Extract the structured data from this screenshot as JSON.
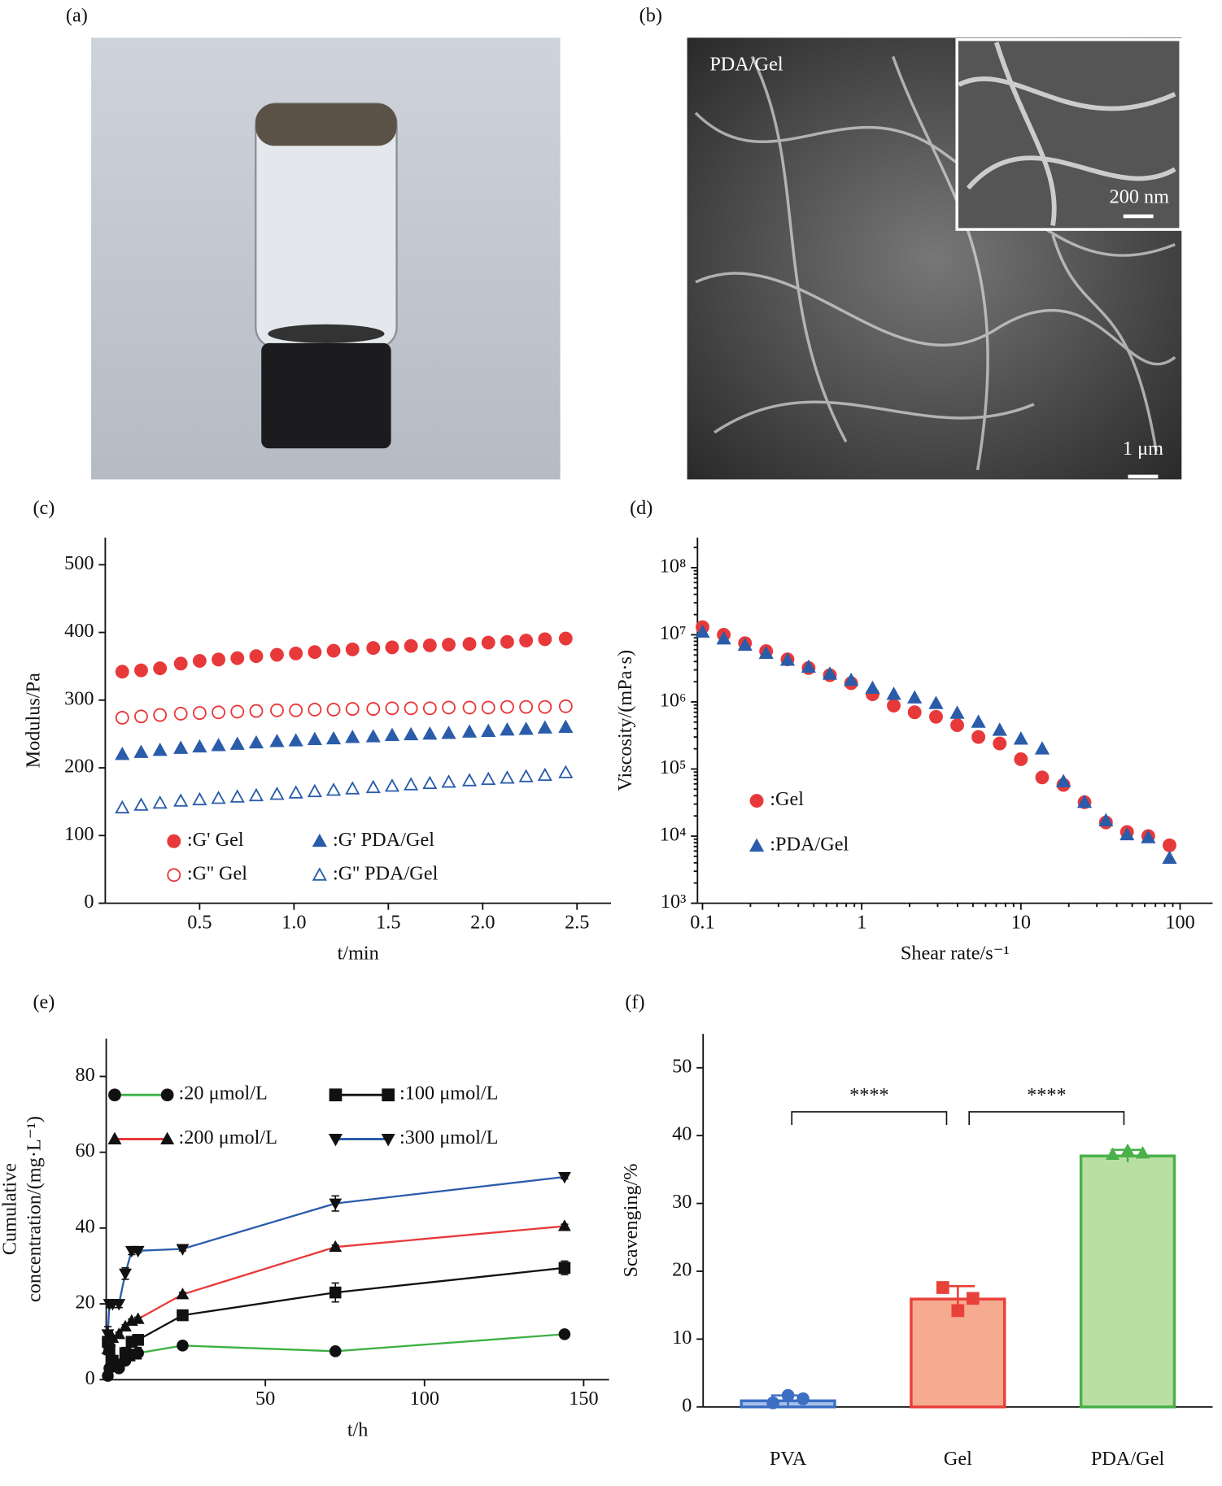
{
  "images": [
    {
      "label": "(a)"
    },
    {
      "label": "(b)",
      "texts": [
        "PDA/Gel",
        "200 nm",
        "1 μm"
      ]
    }
  ],
  "chart_data": [
    {
      "type": "scatter",
      "label": "(c)",
      "xlabel": "t/min",
      "ylabel": "Modulus/Pa",
      "xlim": [
        0,
        2.68
      ],
      "ylim": [
        0,
        540
      ],
      "xticks": [
        0.5,
        {
          "value": 1,
          "label": "1.0"
        },
        1.5,
        {
          "value": 2,
          "label": "2.0"
        },
        2.5
      ],
      "yticks": [
        0,
        100,
        200,
        300,
        400,
        500
      ],
      "x": [
        0.09,
        0.19,
        0.29,
        0.4,
        0.5,
        0.6,
        0.7,
        0.8,
        0.91,
        1.01,
        1.11,
        1.21,
        1.31,
        1.42,
        1.52,
        1.62,
        1.72,
        1.82,
        1.93,
        2.03,
        2.13,
        2.23,
        2.33,
        2.44
      ],
      "series": [
        {
          "name": ":G' Gel",
          "color": "#e8393a",
          "marker": "circle",
          "filled": true,
          "values": [
            342,
            344,
            347,
            354,
            358,
            360,
            362,
            365,
            367,
            369,
            371,
            373,
            375,
            377,
            378,
            380,
            381,
            382,
            383,
            385,
            386,
            388,
            390,
            391
          ]
        },
        {
          "name": ":G'' Gel",
          "color": "#e8393a",
          "marker": "circle",
          "filled": false,
          "values": [
            274,
            276,
            278,
            280,
            281,
            282,
            283,
            284,
            285,
            285,
            286,
            286,
            287,
            287,
            288,
            288,
            288,
            289,
            289,
            289,
            290,
            290,
            290,
            291
          ]
        },
        {
          "name": ":G' PDA/Gel",
          "color": "#2a5caa",
          "marker": "triangle",
          "filled": true,
          "values": [
            220,
            223,
            226,
            229,
            231,
            233,
            235,
            237,
            239,
            240,
            242,
            243,
            245,
            246,
            248,
            249,
            250,
            251,
            253,
            254,
            256,
            257,
            259,
            260
          ]
        },
        {
          "name": ":G'' PDA/Gel",
          "color": "#2a5caa",
          "marker": "triangle",
          "filled": false,
          "values": [
            141,
            145,
            148,
            151,
            153,
            155,
            157,
            159,
            161,
            163,
            165,
            167,
            169,
            171,
            173,
            175,
            177,
            179,
            181,
            183,
            185,
            187,
            189,
            193
          ]
        }
      ]
    },
    {
      "type": "scatter",
      "label": "(d)",
      "xlabel": "Shear rate/s⁻¹",
      "ylabel": "Viscosity/(mPa·s)",
      "xlog": true,
      "ylog": true,
      "xlim": [
        0.093,
        160
      ],
      "ylim": [
        1000,
        280000000
      ],
      "xticks": [
        0.1,
        1,
        10,
        100
      ],
      "yticks": [
        {
          "value": 1000,
          "label": "10³"
        },
        {
          "value": 10000,
          "label": "10⁴"
        },
        {
          "value": 100000,
          "label": "10⁵"
        },
        {
          "value": 1000000,
          "label": "10⁶"
        },
        {
          "value": 10000000,
          "label": "10⁷"
        },
        {
          "value": 100000000,
          "label": "10⁸"
        }
      ],
      "x": [
        0.1,
        0.136,
        0.185,
        0.251,
        0.342,
        0.464,
        0.631,
        0.858,
        1.17,
        1.59,
        2.15,
        2.93,
        3.98,
        5.41,
        7.36,
        10,
        13.6,
        18.5,
        25.1,
        34.2,
        46.4,
        63.1,
        85.8
      ],
      "series": [
        {
          "name": ":Gel",
          "color": "#e8393a",
          "marker": "circle",
          "filled": true,
          "values": [
            13000000,
            10000000,
            7500000,
            5700000,
            4300000,
            3200000,
            2500000,
            1900000,
            1300000,
            880000,
            700000,
            600000,
            450000,
            300000,
            240000,
            140000,
            75000,
            58000,
            32000,
            16000,
            11500,
            10000,
            7300
          ]
        },
        {
          "name": ":PDA/Gel",
          "color": "#2a5caa",
          "marker": "triangle",
          "filled": true,
          "values": [
            11000000,
            8700000,
            7000000,
            5300000,
            4200000,
            3300000,
            2600000,
            2100000,
            1600000,
            1300000,
            1150000,
            950000,
            680000,
            500000,
            380000,
            280000,
            200000,
            65000,
            32000,
            17000,
            10500,
            9500,
            4700
          ]
        }
      ]
    },
    {
      "type": "line",
      "label": "(e)",
      "xlabel": "t/h",
      "ylabel": [
        "Cumulative",
        "concentration/(mg·L⁻¹)"
      ],
      "xlim": [
        0,
        158
      ],
      "ylim": [
        0,
        90
      ],
      "xticks": [
        50,
        100,
        150
      ],
      "yticks": [
        0,
        20,
        40,
        60,
        80
      ],
      "x": [
        0.5,
        1,
        2,
        4,
        6,
        8,
        10,
        24,
        72,
        144
      ],
      "series": [
        {
          "name": ":20 μmol/L",
          "color": "#3cb043",
          "marker": "circle",
          "values": [
            1,
            3,
            4,
            3,
            5,
            6.5,
            7,
            9,
            7.5,
            12
          ],
          "errors": [
            0.5,
            1,
            1,
            1,
            1,
            1.5,
            1.5,
            0.5,
            0.5,
            0.5
          ]
        },
        {
          "name": ":100 μmol/L",
          "color": "#111111",
          "marker": "square",
          "values": [
            10,
            8,
            5,
            4,
            7,
            10,
            10.5,
            17,
            23,
            29.5
          ],
          "errors": [
            1,
            1,
            1,
            1,
            1.5,
            1,
            1,
            0.8,
            2.5,
            1.8
          ]
        },
        {
          "name": ":200 μmol/L",
          "color": "#e8393a",
          "marker": "triangle",
          "values": [
            8,
            10,
            11,
            12,
            14,
            15.5,
            16,
            22.5,
            35,
            40.5
          ],
          "errors": [
            0.5,
            0.5,
            0.5,
            0.5,
            0.5,
            0.5,
            0.5,
            0.5,
            0.5,
            0.5
          ]
        },
        {
          "name": ":300 μmol/L",
          "color": "#2a5caa",
          "marker": "tridown",
          "values": [
            12,
            20,
            20,
            20,
            28,
            34,
            34,
            34.5,
            46.5,
            53.5
          ],
          "errors": [
            2,
            1,
            1,
            1,
            1.5,
            1,
            0.5,
            0.5,
            2,
            0.5
          ]
        }
      ]
    },
    {
      "type": "bar",
      "label": "(f)",
      "ylabel": "Scavenging/%",
      "ylim": [
        0,
        55
      ],
      "yticks": [
        0,
        10,
        20,
        30,
        40,
        50
      ],
      "categories": [
        "PVA",
        "Gel",
        "PDA/Gel"
      ],
      "values": [
        0.9,
        15.9,
        37.0
      ],
      "errors": [
        0.8,
        1.9,
        0.9
      ],
      "points": [
        [
          0.6,
          1.7,
          1.2
        ],
        [
          17.6,
          14.2,
          16.0
        ],
        [
          37.2,
          37.8,
          37.4
        ]
      ],
      "colors": [
        "#3c6fc4",
        "#e8413a",
        "#4ab04a"
      ],
      "fill_colors": [
        "#a7bfe8",
        "#f6ab90",
        "#b9dfa3"
      ],
      "markers": [
        "circle",
        "square",
        "triangle"
      ],
      "annotations": [
        {
          "text": "****",
          "from": 0,
          "to": 1
        },
        {
          "text": "****",
          "from": 1,
          "to": 2
        }
      ]
    }
  ]
}
